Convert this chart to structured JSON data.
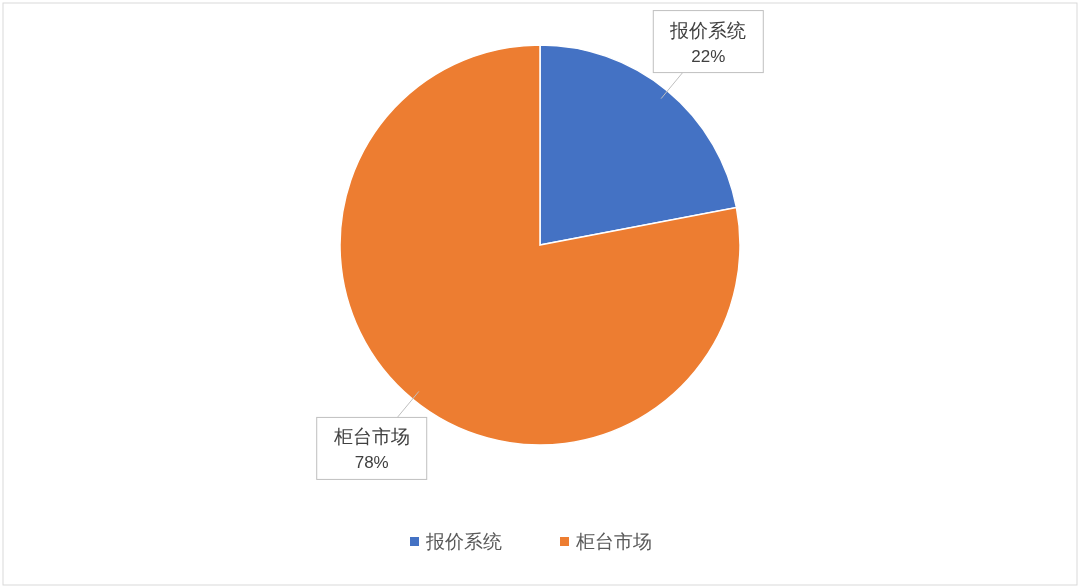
{
  "chart_data": {
    "type": "pie",
    "categories": [
      "报价系统",
      "柜台市场"
    ],
    "values": [
      22,
      78
    ],
    "colors": [
      "#4472c4",
      "#ed7d31"
    ],
    "value_labels": [
      "22%",
      "78%"
    ],
    "legend": "bottom"
  }
}
